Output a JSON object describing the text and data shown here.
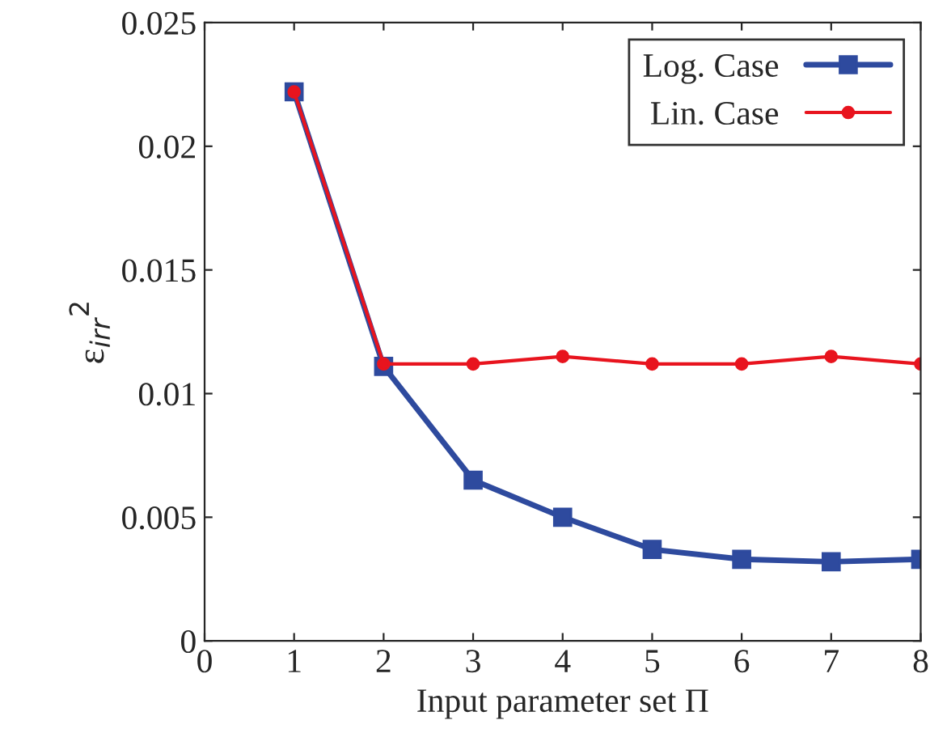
{
  "chart_data": {
    "type": "line",
    "xlabel": "Input parameter set Π",
    "ylabel": "ε$_{irr}$$^{2}$",
    "x": [
      1,
      2,
      3,
      4,
      5,
      6,
      7,
      8
    ],
    "series": [
      {
        "name": "Log. Case",
        "color": "#2e4a9e",
        "marker": "square",
        "values": [
          0.0222,
          0.0111,
          0.0065,
          0.005,
          0.0037,
          0.0033,
          0.0032,
          0.0033
        ]
      },
      {
        "name": "Lin. Case",
        "color": "#e8141e",
        "marker": "circle",
        "values": [
          0.0222,
          0.0112,
          0.0112,
          0.0115,
          0.0112,
          0.0112,
          0.0115,
          0.0112
        ]
      }
    ],
    "xlim": [
      0,
      8
    ],
    "xticks": [
      0,
      1,
      2,
      3,
      4,
      5,
      6,
      7,
      8
    ],
    "ylim": [
      0,
      0.025
    ],
    "yticks": [
      0,
      0.005,
      0.01,
      0.015,
      0.02,
      0.025
    ],
    "legend": "top right",
    "grid": false,
    "line_style": "solid"
  }
}
